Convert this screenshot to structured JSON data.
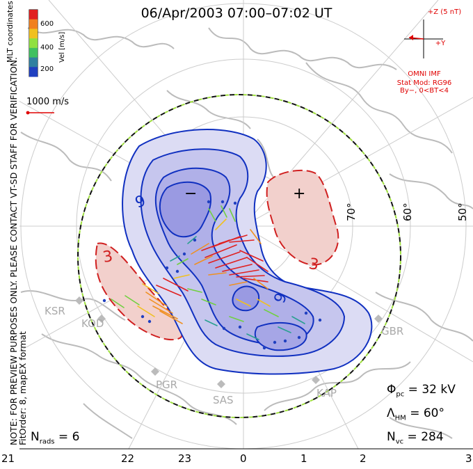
{
  "title": "06/Apr/2003  07:00–07:02 UT",
  "colorbar": {
    "label": "Vel [m/s]",
    "ticks": [
      "600",
      "400",
      "200"
    ],
    "colors": [
      "#e02020",
      "#f08020",
      "#f0c020",
      "#90e040",
      "#40c060",
      "#3080a0",
      "#2040c0"
    ]
  },
  "coordinates_label": "MLT coordinates",
  "scale_vector": {
    "label": "1000 m/s",
    "color": "#e00000"
  },
  "notes": {
    "preview": "NOTE: FOR PREVIEW PURPOSES ONLY. PLEASE CONTACT VT-SD STAFF FOR VERIFICATION.",
    "fit": "FitOrder: 8, mapEX format"
  },
  "imf": {
    "z_label": "+Z (5 nT)",
    "y_label": "+Y",
    "source": "OMNI IMF",
    "model": "Stat Mod: RG96",
    "condition": "By−, 0<BT<4",
    "color": "#e00000"
  },
  "latitude_labels": [
    "70°",
    "60°",
    "50°"
  ],
  "stations": [
    "KSR",
    "KOD",
    "PGR",
    "SAS",
    "KAP",
    "GBR"
  ],
  "contours": {
    "negative_label": "−",
    "positive_label": "+",
    "neg_value_label": "9",
    "neg_value_label_2": "9",
    "pos_value_label": "3",
    "pos_value_label_2": "3",
    "negative_color": "#1030c0",
    "positive_color": "#d02020"
  },
  "stats": {
    "phi_pc": "32 kV",
    "lambda_hm": "60°",
    "n_vc": "284",
    "n_rads": "6"
  },
  "mlt_axis": [
    "21",
    "22",
    "23",
    "0",
    "1",
    "2",
    "3"
  ]
}
